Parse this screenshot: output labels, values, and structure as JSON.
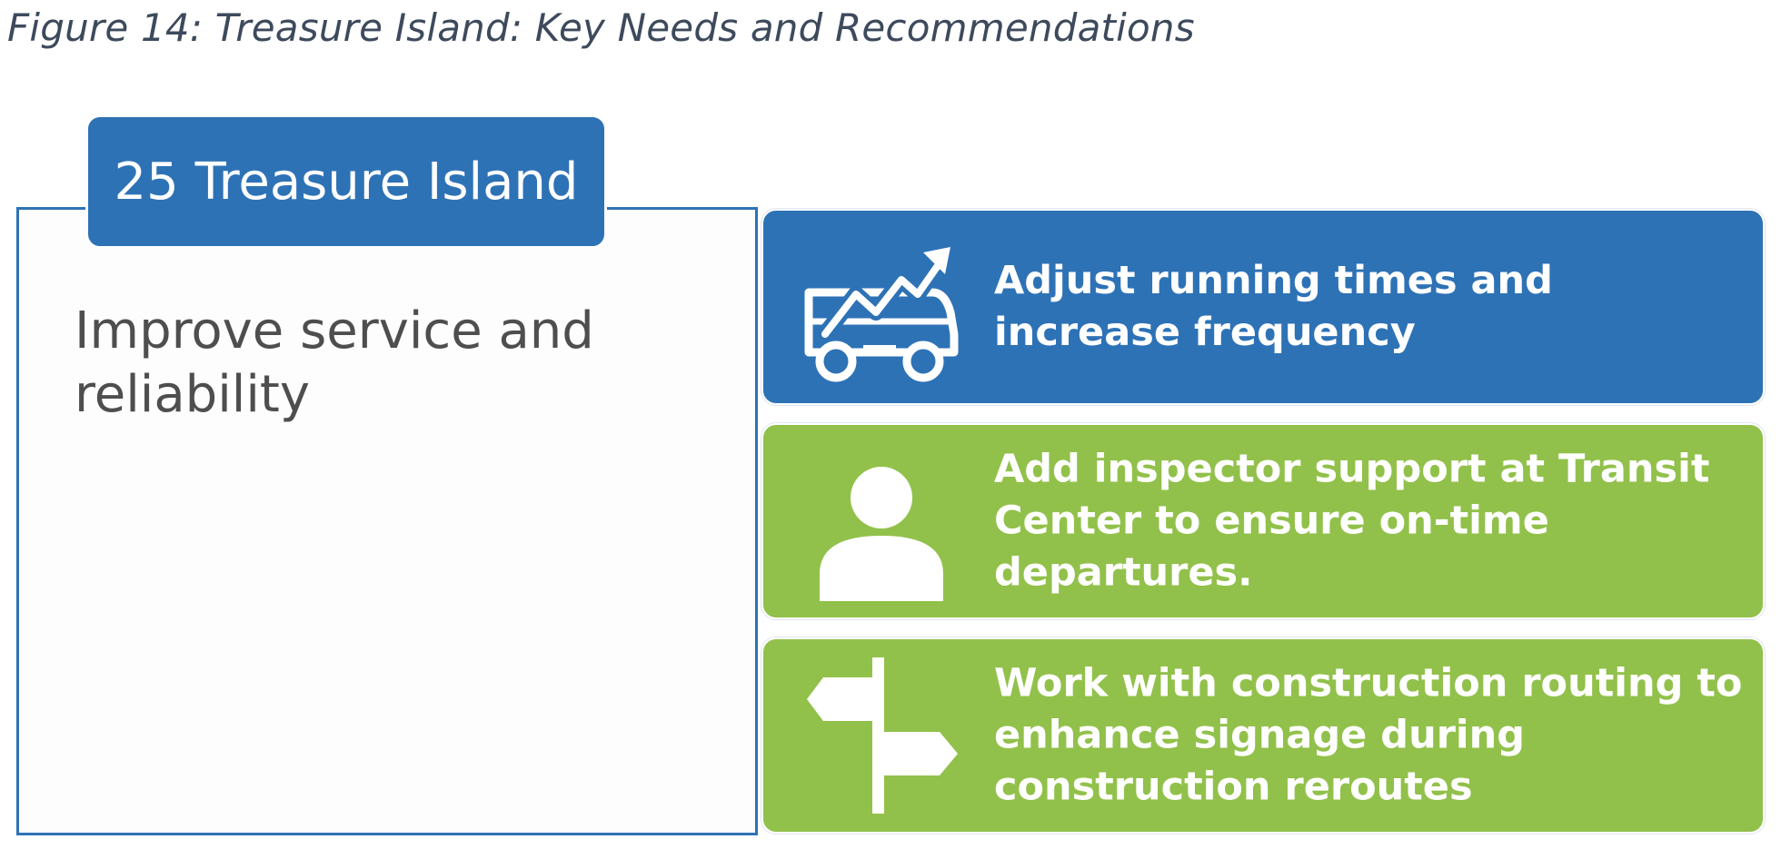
{
  "figure": {
    "caption": "Figure 14: Treasure Island: Key Needs and Recommendations"
  },
  "route": {
    "name": "25 Treasure Island",
    "need": "Improve service and reliability",
    "accent_color": "#2e72b6"
  },
  "recommendations": [
    {
      "text": "Adjust running times and increase frequency",
      "icon": "bus-trend-arrow-icon",
      "color": "#2e72b6"
    },
    {
      "text": "Add inspector support at Transit Center to ensure on-time departures.",
      "icon": "person-icon",
      "color": "#92c14b"
    },
    {
      "text": "Work with construction routing to enhance signage during construction reroutes",
      "icon": "signpost-icon",
      "color": "#92c14b"
    }
  ]
}
